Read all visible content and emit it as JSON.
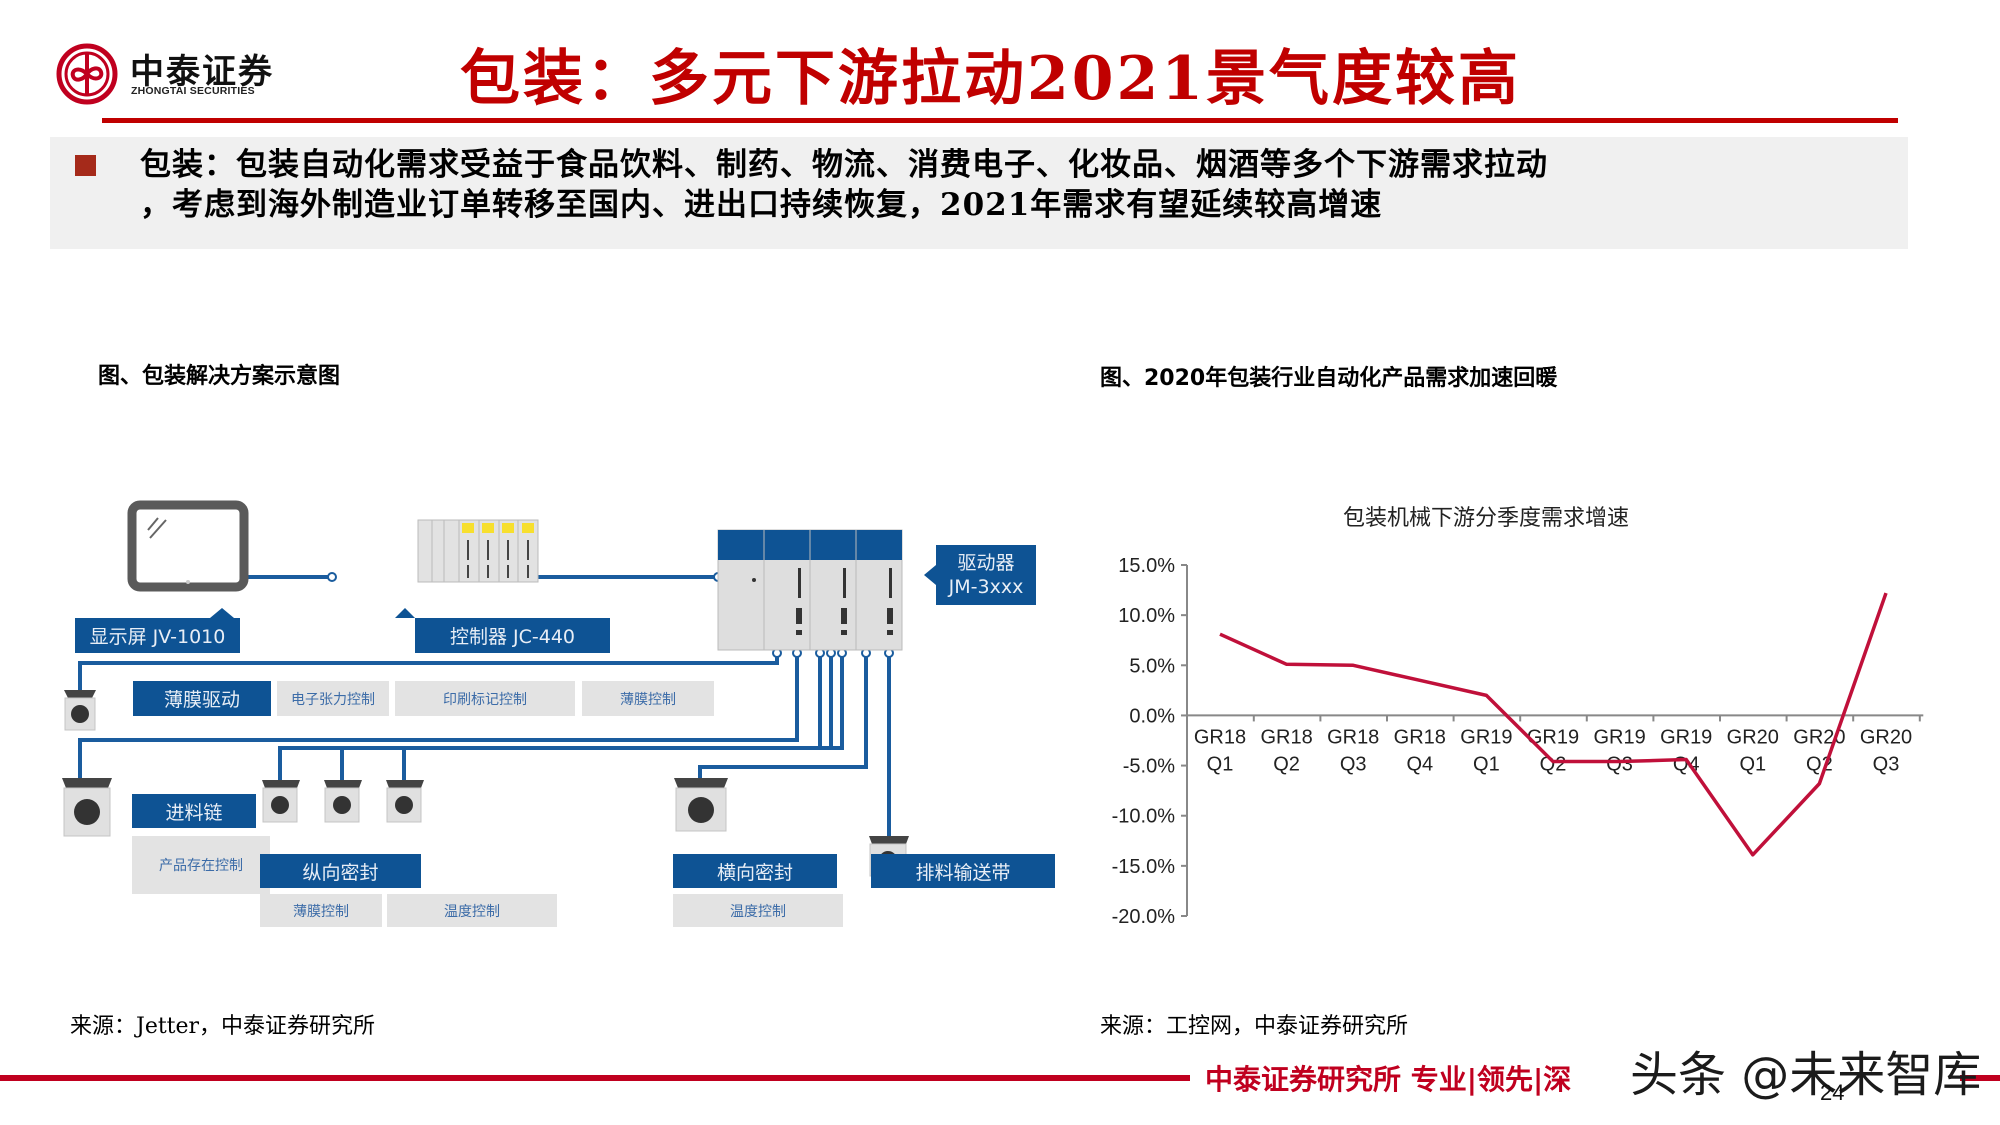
{
  "header": {
    "logo_cn": "中泰证券",
    "logo_en": "ZHONGTAI SECURITIES",
    "title": "包装：多元下游拉动2021景气度较高"
  },
  "summary": {
    "line1": "包装：包装自动化需求受益于食品饮料、制药、物流、消费电子、化妆品、烟酒等多个下游需求拉动",
    "line2": "，考虑到海外制造业订单转移至国内、进出口持续恢复，2021年需求有望延续较高增速"
  },
  "left_figure": {
    "caption": "图、包装解决方案示意图",
    "source": "来源：Jetter，中泰证券研究所",
    "labels": {
      "display": "显示屏 JV-1010",
      "controller": "控制器 JC-440",
      "driver_line1": "驱动器",
      "driver_line2": "JM-3xxx",
      "film_drive": "薄膜驱动",
      "tension_ctrl": "电子张力控制",
      "print_mark_ctrl": "印刷标记控制",
      "film_ctrl_top": "薄膜控制",
      "feed_chain": "进料链",
      "product_presence": "产品存在控制",
      "longitudinal_seal": "纵向密封",
      "film_ctrl_bottom": "薄膜控制",
      "temp_ctrl_1": "温度控制",
      "transverse_seal": "横向密封",
      "temp_ctrl_2": "温度控制",
      "discharge_conveyor": "排料输送带"
    },
    "colors": {
      "blue": "#0e5394",
      "grey": "#e3e3e3",
      "cable": "#1a5c9e"
    }
  },
  "right_figure": {
    "caption": "图、2020年包装行业自动化产品需求加速回暖",
    "source": "来源：工控网，中泰证券研究所"
  },
  "chart_data": {
    "type": "line",
    "title": "包装机械下游分季度需求增速",
    "categories": [
      "GR18 Q1",
      "GR18 Q2",
      "GR18 Q3",
      "GR18 Q4",
      "GR19 Q1",
      "GR19 Q2",
      "GR19 Q3",
      "GR19 Q4",
      "GR20 Q1",
      "GR20 Q2",
      "GR20 Q3"
    ],
    "category_lines": [
      [
        "GR18",
        "Q1"
      ],
      [
        "GR18",
        "Q2"
      ],
      [
        "GR18",
        "Q3"
      ],
      [
        "GR18",
        "Q4"
      ],
      [
        "GR19",
        "Q1"
      ],
      [
        "GR19",
        "Q2"
      ],
      [
        "GR19",
        "Q3"
      ],
      [
        "GR19",
        "Q4"
      ],
      [
        "GR20",
        "Q1"
      ],
      [
        "GR20",
        "Q2"
      ],
      [
        "GR20",
        "Q3"
      ]
    ],
    "series": [
      {
        "name": "包装机械下游分季度需求增速",
        "values": [
          8.1,
          5.1,
          5.0,
          3.5,
          2.0,
          -4.6,
          -4.6,
          -4.4,
          -13.9,
          -6.8,
          12.2
        ],
        "color": "#c0103a"
      }
    ],
    "xlabel": "",
    "ylabel": "",
    "ylim": [
      -20,
      15
    ],
    "yticks": [
      "15.0%",
      "10.0%",
      "5.0%",
      "0.0%",
      "-5.0%",
      "-10.0%",
      "-15.0%",
      "-20.0%"
    ],
    "ytick_values": [
      15,
      10,
      5,
      0,
      -5,
      -10,
      -15,
      -20
    ],
    "grid": false,
    "legend": "none"
  },
  "footer": {
    "text": "中泰证券研究所 专业|领先|深",
    "watermark": "头条 @未来智库",
    "page": "24"
  }
}
